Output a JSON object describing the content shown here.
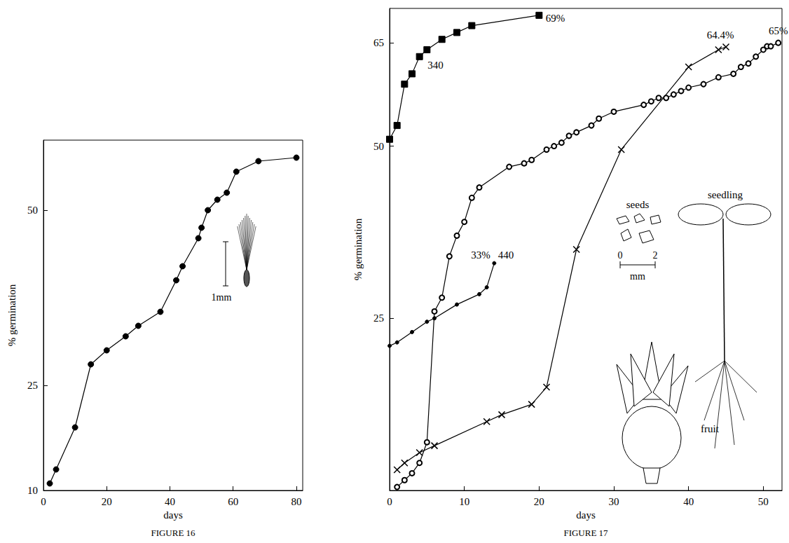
{
  "chart_data": [
    {
      "type": "line",
      "title": "FIGURE 16",
      "x_label": "days",
      "y_label": "% germination",
      "xlim": [
        0,
        82
      ],
      "xticks": [
        0,
        20,
        40,
        60,
        80
      ],
      "ylim": [
        10,
        60
      ],
      "yticks": [
        10,
        25,
        50
      ],
      "marker": "filled_circle",
      "x": [
        2,
        4,
        10,
        15,
        20,
        26,
        30,
        37,
        42,
        44,
        49,
        50,
        52,
        55,
        58,
        61,
        68,
        80
      ],
      "values": [
        11,
        13,
        19,
        28,
        30,
        32,
        33.5,
        35.5,
        40,
        42,
        46,
        47.5,
        50,
        51.5,
        52.5,
        55.5,
        57,
        57.5
      ],
      "annotations": [
        "1mm"
      ]
    },
    {
      "type": "line",
      "title": "FIGURE 17",
      "x_label": "days",
      "y_label": "% germination",
      "xlim": [
        0,
        52.5
      ],
      "xticks": [
        0,
        10,
        20,
        30,
        40,
        50
      ],
      "ylim": [
        0,
        70
      ],
      "yticks": [
        25,
        50,
        65
      ],
      "series": [
        {
          "name": "340",
          "marker": "filled_square",
          "end_label": "69%",
          "x": [
            0,
            1,
            2,
            3,
            4,
            5,
            7,
            9,
            11,
            20
          ],
          "values": [
            51,
            53,
            59,
            60.5,
            63,
            64,
            65.5,
            66.5,
            67.5,
            69
          ]
        },
        {
          "name": "440",
          "marker": "small_dot",
          "end_label": "33%",
          "x": [
            0,
            1,
            3,
            5,
            6,
            9,
            12,
            13,
            14
          ],
          "values": [
            21,
            21.5,
            23,
            24.5,
            25,
            27,
            28.5,
            29.5,
            33
          ]
        },
        {
          "marker": "open_circle",
          "end_label": "65%",
          "x": [
            1,
            2,
            3,
            4,
            5,
            6,
            7,
            8,
            9,
            10,
            11,
            12,
            16,
            18,
            19,
            21,
            22,
            23,
            24,
            25,
            27,
            28,
            30,
            34,
            35,
            36,
            37,
            38,
            39,
            40,
            42,
            44,
            46,
            47,
            48,
            49,
            50,
            50.5,
            51,
            52
          ],
          "values": [
            0.5,
            1.5,
            2.5,
            4,
            7,
            26,
            28,
            34,
            37,
            39,
            42.5,
            44,
            47,
            47.5,
            48,
            49.5,
            50,
            50.5,
            51.5,
            52,
            53,
            54,
            55,
            56,
            56.5,
            57,
            57,
            57.5,
            58,
            58.5,
            59,
            60,
            60.5,
            61.5,
            62,
            63,
            64,
            64.5,
            64.5,
            65
          ]
        },
        {
          "marker": "cross",
          "end_label": "64.4%",
          "x": [
            1,
            2,
            4,
            6,
            13,
            15,
            19,
            21,
            25,
            31,
            40,
            44,
            45
          ],
          "values": [
            3,
            4,
            5.5,
            6.5,
            10,
            11,
            12.5,
            15,
            35,
            49.5,
            61.5,
            64,
            64.4
          ]
        }
      ],
      "annotations": [
        "seeds",
        "0",
        "2",
        "mm",
        "seedling",
        "fruit"
      ]
    }
  ]
}
